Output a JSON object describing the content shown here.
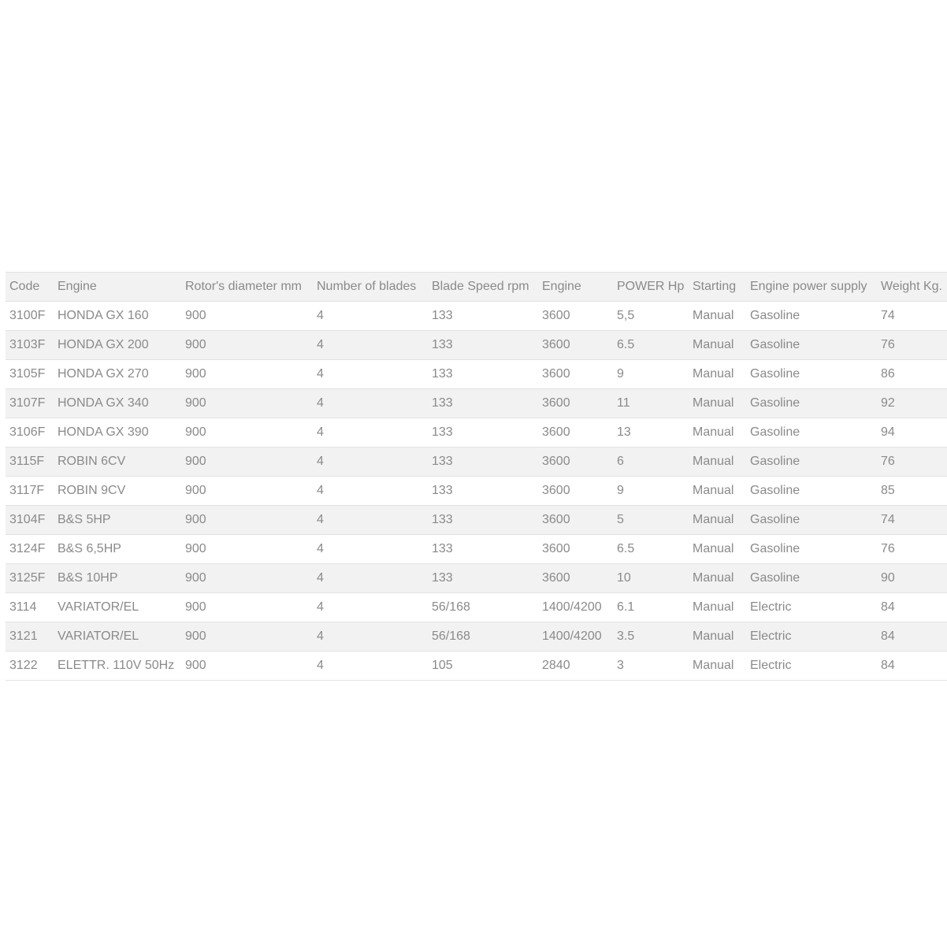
{
  "table": {
    "headers": [
      "Code",
      "Engine",
      "Rotor's diameter mm",
      "Number of blades",
      "Blade Speed rpm",
      "Engine",
      "POWER Hp",
      "Starting",
      "Engine power supply",
      "Weight Kg."
    ],
    "rows": [
      [
        "3100F",
        "HONDA GX 160",
        "900",
        "4",
        "133",
        "3600",
        "5,5",
        "Manual",
        "Gasoline",
        "74"
      ],
      [
        "3103F",
        "HONDA GX 200",
        "900",
        "4",
        "133",
        "3600",
        "6.5",
        "Manual",
        "Gasoline",
        "76"
      ],
      [
        "3105F",
        "HONDA GX 270",
        "900",
        "4",
        "133",
        "3600",
        "9",
        "Manual",
        "Gasoline",
        "86"
      ],
      [
        "3107F",
        "HONDA GX 340",
        "900",
        "4",
        "133",
        "3600",
        "11",
        "Manual",
        "Gasoline",
        "92"
      ],
      [
        "3106F",
        "HONDA GX 390",
        "900",
        "4",
        "133",
        "3600",
        "13",
        "Manual",
        "Gasoline",
        "94"
      ],
      [
        "3115F",
        "ROBIN 6CV",
        "900",
        "4",
        "133",
        "3600",
        "6",
        "Manual",
        "Gasoline",
        "76"
      ],
      [
        "3117F",
        "ROBIN 9CV",
        "900",
        "4",
        "133",
        "3600",
        "9",
        "Manual",
        "Gasoline",
        "85"
      ],
      [
        "3104F",
        "B&S 5HP",
        "900",
        "4",
        "133",
        "3600",
        "5",
        "Manual",
        "Gasoline",
        "74"
      ],
      [
        "3124F",
        "B&S 6,5HP",
        "900",
        "4",
        "133",
        "3600",
        "6.5",
        "Manual",
        "Gasoline",
        "76"
      ],
      [
        "3125F",
        "B&S 10HP",
        "900",
        "4",
        "133",
        "3600",
        "10",
        "Manual",
        "Gasoline",
        "90"
      ],
      [
        "3114",
        "VARIATOR/EL",
        "900",
        "4",
        "56/168",
        "1400/4200",
        "6.1",
        "Manual",
        "Electric",
        "84"
      ],
      [
        "3121",
        "VARIATOR/EL",
        "900",
        "4",
        "56/168",
        "1400/4200",
        "3.5",
        "Manual",
        "Electric",
        "84"
      ],
      [
        "3122",
        "ELETTR. 110V 50Hz",
        "900",
        "4",
        "105",
        "2840",
        "3",
        "Manual",
        "Electric",
        "84"
      ]
    ]
  }
}
